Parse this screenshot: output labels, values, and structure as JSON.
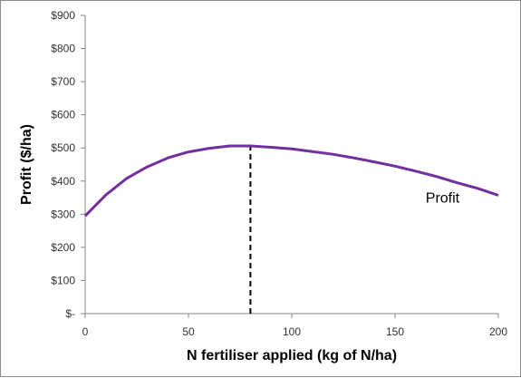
{
  "chart_data": {
    "type": "line",
    "xlabel": "N fertiliser applied (kg of N/ha)",
    "ylabel": "Profit  ($/ha)",
    "xlim": [
      0,
      200
    ],
    "ylim": [
      0,
      900
    ],
    "x_ticks": [
      0,
      50,
      100,
      150,
      200
    ],
    "x_tick_labels": [
      "0",
      "50",
      "100",
      "150",
      "200"
    ],
    "y_ticks": [
      0,
      100,
      200,
      300,
      400,
      500,
      600,
      700,
      800,
      900
    ],
    "y_tick_labels": [
      "$-",
      "$100",
      "$200",
      "$300",
      "$400",
      "$500",
      "$600",
      "$700",
      "$800",
      "$900"
    ],
    "grid": false,
    "series": [
      {
        "name": "Profit",
        "color": "#7030a0",
        "x": [
          0,
          10,
          20,
          30,
          40,
          50,
          60,
          70,
          80,
          90,
          100,
          110,
          120,
          130,
          140,
          150,
          160,
          170,
          180,
          190,
          200
        ],
        "y": [
          295,
          358,
          408,
          443,
          470,
          488,
          499,
          506,
          506,
          502,
          497,
          489,
          481,
          470,
          458,
          445,
          430,
          414,
          395,
          378,
          357
        ]
      }
    ],
    "annotations": [
      {
        "type": "vertical-dashed-line",
        "x": 80,
        "y_from": 0,
        "y_to": 506,
        "color": "#000000"
      },
      {
        "type": "series-label",
        "text": "Profit",
        "x": 173,
        "y": 335
      }
    ]
  }
}
